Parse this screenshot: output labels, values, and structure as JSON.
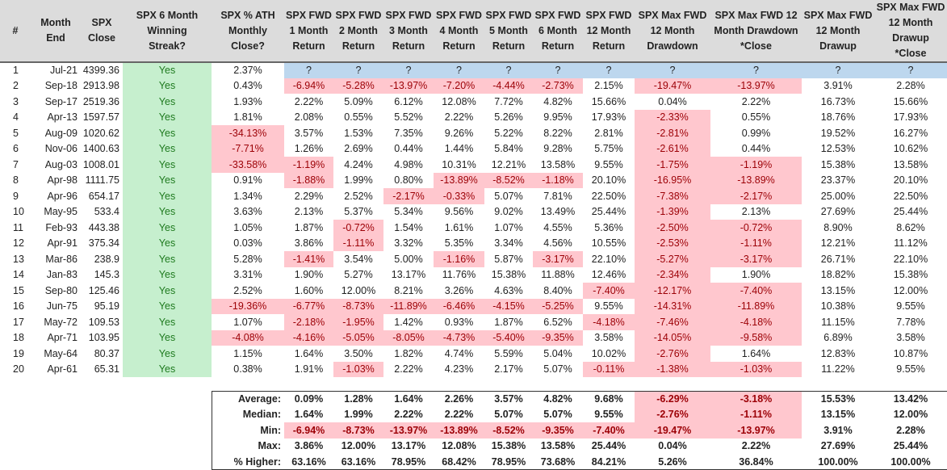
{
  "headers": [
    "#",
    "Month\nEnd",
    "SPX\nClose",
    "SPX 6 Month\nWinning\nStreak?",
    "SPX % ATH\nMonthly\nClose?",
    "SPX FWD\n1 Month\nReturn",
    "SPX FWD\n2 Month\nReturn",
    "SPX FWD\n3 Month\nReturn",
    "SPX FWD\n4 Month\nReturn",
    "SPX FWD\n5 Month\nReturn",
    "SPX FWD\n6 Month\nReturn",
    "SPX FWD\n12 Month\nReturn",
    "SPX Max FWD\n12 Month\nDrawdown",
    "SPX Max FWD 12\nMonth Drawdown\n*Close",
    "SPX Max FWD\n12 Month\nDrawup",
    "SPX Max FWD\n12 Month\nDrawup *Close"
  ],
  "rows": [
    [
      "1",
      "Jul-21",
      "4399.36",
      "Yes",
      "2.37%",
      "?",
      "?",
      "?",
      "?",
      "?",
      "?",
      "?",
      "?",
      "?",
      "?",
      "?"
    ],
    [
      "2",
      "Sep-18",
      "2913.98",
      "Yes",
      "0.43%",
      "-6.94%",
      "-5.28%",
      "-13.97%",
      "-7.20%",
      "-4.44%",
      "-2.73%",
      "2.15%",
      "-19.47%",
      "-13.97%",
      "3.91%",
      "2.28%"
    ],
    [
      "3",
      "Sep-17",
      "2519.36",
      "Yes",
      "1.93%",
      "2.22%",
      "5.09%",
      "6.12%",
      "12.08%",
      "7.72%",
      "4.82%",
      "15.66%",
      "0.04%",
      "2.22%",
      "16.73%",
      "15.66%"
    ],
    [
      "4",
      "Apr-13",
      "1597.57",
      "Yes",
      "1.81%",
      "2.08%",
      "0.55%",
      "5.52%",
      "2.22%",
      "5.26%",
      "9.95%",
      "17.93%",
      "-2.33%",
      "0.55%",
      "18.76%",
      "17.93%"
    ],
    [
      "5",
      "Aug-09",
      "1020.62",
      "Yes",
      "-34.13%",
      "3.57%",
      "1.53%",
      "7.35%",
      "9.26%",
      "5.22%",
      "8.22%",
      "2.81%",
      "-2.81%",
      "0.99%",
      "19.52%",
      "16.27%"
    ],
    [
      "6",
      "Nov-06",
      "1400.63",
      "Yes",
      "-7.71%",
      "1.26%",
      "2.69%",
      "0.44%",
      "1.44%",
      "5.84%",
      "9.28%",
      "5.75%",
      "-2.61%",
      "0.44%",
      "12.53%",
      "10.62%"
    ],
    [
      "7",
      "Aug-03",
      "1008.01",
      "Yes",
      "-33.58%",
      "-1.19%",
      "4.24%",
      "4.98%",
      "10.31%",
      "12.21%",
      "13.58%",
      "9.55%",
      "-1.75%",
      "-1.19%",
      "15.38%",
      "13.58%"
    ],
    [
      "8",
      "Apr-98",
      "1111.75",
      "Yes",
      "0.91%",
      "-1.88%",
      "1.99%",
      "0.80%",
      "-13.89%",
      "-8.52%",
      "-1.18%",
      "20.10%",
      "-16.95%",
      "-13.89%",
      "23.37%",
      "20.10%"
    ],
    [
      "9",
      "Apr-96",
      "654.17",
      "Yes",
      "1.34%",
      "2.29%",
      "2.52%",
      "-2.17%",
      "-0.33%",
      "5.07%",
      "7.81%",
      "22.50%",
      "-7.38%",
      "-2.17%",
      "25.00%",
      "22.50%"
    ],
    [
      "10",
      "May-95",
      "533.4",
      "Yes",
      "3.63%",
      "2.13%",
      "5.37%",
      "5.34%",
      "9.56%",
      "9.02%",
      "13.49%",
      "25.44%",
      "-1.39%",
      "2.13%",
      "27.69%",
      "25.44%"
    ],
    [
      "11",
      "Feb-93",
      "443.38",
      "Yes",
      "1.05%",
      "1.87%",
      "-0.72%",
      "1.54%",
      "1.61%",
      "1.07%",
      "4.55%",
      "5.36%",
      "-2.50%",
      "-0.72%",
      "8.90%",
      "8.62%"
    ],
    [
      "12",
      "Apr-91",
      "375.34",
      "Yes",
      "0.03%",
      "3.86%",
      "-1.11%",
      "3.32%",
      "5.35%",
      "3.34%",
      "4.56%",
      "10.55%",
      "-2.53%",
      "-1.11%",
      "12.21%",
      "11.12%"
    ],
    [
      "13",
      "Mar-86",
      "238.9",
      "Yes",
      "5.28%",
      "-1.41%",
      "3.54%",
      "5.00%",
      "-1.16%",
      "5.87%",
      "-3.17%",
      "22.10%",
      "-5.27%",
      "-3.17%",
      "26.71%",
      "22.10%"
    ],
    [
      "14",
      "Jan-83",
      "145.3",
      "Yes",
      "3.31%",
      "1.90%",
      "5.27%",
      "13.17%",
      "11.76%",
      "15.38%",
      "11.88%",
      "12.46%",
      "-2.34%",
      "1.90%",
      "18.82%",
      "15.38%"
    ],
    [
      "15",
      "Sep-80",
      "125.46",
      "Yes",
      "2.52%",
      "1.60%",
      "12.00%",
      "8.21%",
      "3.26%",
      "4.63%",
      "8.40%",
      "-7.40%",
      "-12.17%",
      "-7.40%",
      "13.15%",
      "12.00%"
    ],
    [
      "16",
      "Jun-75",
      "95.19",
      "Yes",
      "-19.36%",
      "-6.77%",
      "-8.73%",
      "-11.89%",
      "-6.46%",
      "-4.15%",
      "-5.25%",
      "9.55%",
      "-14.31%",
      "-11.89%",
      "10.38%",
      "9.55%"
    ],
    [
      "17",
      "May-72",
      "109.53",
      "Yes",
      "1.07%",
      "-2.18%",
      "-1.95%",
      "1.42%",
      "0.93%",
      "1.87%",
      "6.52%",
      "-4.18%",
      "-7.46%",
      "-4.18%",
      "11.15%",
      "7.78%"
    ],
    [
      "18",
      "Apr-71",
      "103.95",
      "Yes",
      "-4.08%",
      "-4.16%",
      "-5.05%",
      "-8.05%",
      "-4.73%",
      "-5.40%",
      "-9.35%",
      "3.58%",
      "-14.05%",
      "-9.58%",
      "6.89%",
      "3.58%"
    ],
    [
      "19",
      "May-64",
      "80.37",
      "Yes",
      "1.15%",
      "1.64%",
      "3.50%",
      "1.82%",
      "4.74%",
      "5.59%",
      "5.04%",
      "10.02%",
      "-2.76%",
      "1.64%",
      "12.83%",
      "10.87%"
    ],
    [
      "20",
      "Apr-61",
      "65.31",
      "Yes",
      "0.38%",
      "1.91%",
      "-1.03%",
      "2.22%",
      "4.23%",
      "2.17%",
      "5.07%",
      "-0.11%",
      "-1.38%",
      "-1.03%",
      "11.22%",
      "9.55%"
    ]
  ],
  "summary": [
    [
      "Average:",
      "0.09%",
      "1.28%",
      "1.64%",
      "2.26%",
      "3.57%",
      "4.82%",
      "9.68%",
      "-6.29%",
      "-3.18%",
      "15.53%",
      "13.42%"
    ],
    [
      "Median:",
      "1.64%",
      "1.99%",
      "2.22%",
      "2.22%",
      "5.07%",
      "5.07%",
      "9.55%",
      "-2.76%",
      "-1.11%",
      "13.15%",
      "12.00%"
    ],
    [
      "Min:",
      "-6.94%",
      "-8.73%",
      "-13.97%",
      "-13.89%",
      "-8.52%",
      "-9.35%",
      "-7.40%",
      "-19.47%",
      "-13.97%",
      "3.91%",
      "2.28%"
    ],
    [
      "Max:",
      "3.86%",
      "12.00%",
      "13.17%",
      "12.08%",
      "15.38%",
      "13.58%",
      "25.44%",
      "0.04%",
      "2.22%",
      "27.69%",
      "25.44%"
    ],
    [
      "% Higher:",
      "63.16%",
      "63.16%",
      "78.95%",
      "68.42%",
      "78.95%",
      "73.68%",
      "84.21%",
      "5.26%",
      "36.84%",
      "100.00%",
      "100.00%"
    ]
  ]
}
